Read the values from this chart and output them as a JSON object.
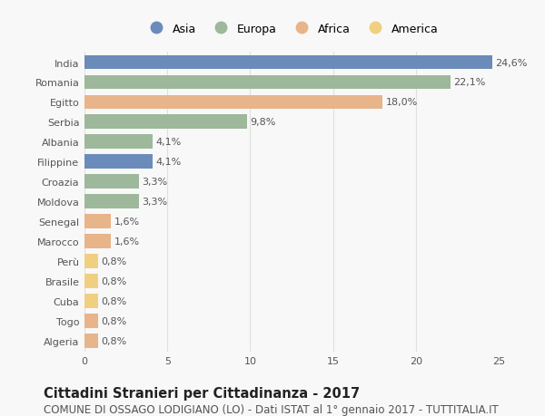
{
  "categories": [
    "India",
    "Romania",
    "Egitto",
    "Serbia",
    "Albania",
    "Filippine",
    "Croazia",
    "Moldova",
    "Senegal",
    "Marocco",
    "Perù",
    "Brasile",
    "Cuba",
    "Togo",
    "Algeria"
  ],
  "values": [
    24.6,
    22.1,
    18.0,
    9.8,
    4.1,
    4.1,
    3.3,
    3.3,
    1.6,
    1.6,
    0.8,
    0.8,
    0.8,
    0.8,
    0.8
  ],
  "labels": [
    "24,6%",
    "22,1%",
    "18,0%",
    "9,8%",
    "4,1%",
    "4,1%",
    "3,3%",
    "3,3%",
    "1,6%",
    "1,6%",
    "0,8%",
    "0,8%",
    "0,8%",
    "0,8%",
    "0,8%"
  ],
  "colors": [
    "#6b8cba",
    "#9db89b",
    "#e8b48a",
    "#9db89b",
    "#9db89b",
    "#6b8cba",
    "#9db89b",
    "#9db89b",
    "#e8b48a",
    "#e8b48a",
    "#f0d080",
    "#f0d080",
    "#f0d080",
    "#e8b48a",
    "#e8b48a"
  ],
  "legend_labels": [
    "Asia",
    "Europa",
    "Africa",
    "America"
  ],
  "legend_colors": [
    "#6b8cba",
    "#9db89b",
    "#e8b48a",
    "#f0d080"
  ],
  "title": "Cittadini Stranieri per Cittadinanza - 2017",
  "subtitle": "COMUNE DI OSSAGO LODIGIANO (LO) - Dati ISTAT al 1° gennaio 2017 - TUTTITALIA.IT",
  "xlim": [
    0,
    25
  ],
  "xticks": [
    0,
    5,
    10,
    15,
    20,
    25
  ],
  "background_color": "#f8f8f8",
  "grid_color": "#e0e0e0",
  "bar_height": 0.72,
  "title_fontsize": 10.5,
  "subtitle_fontsize": 8.5,
  "label_fontsize": 8,
  "tick_fontsize": 8,
  "legend_fontsize": 9
}
